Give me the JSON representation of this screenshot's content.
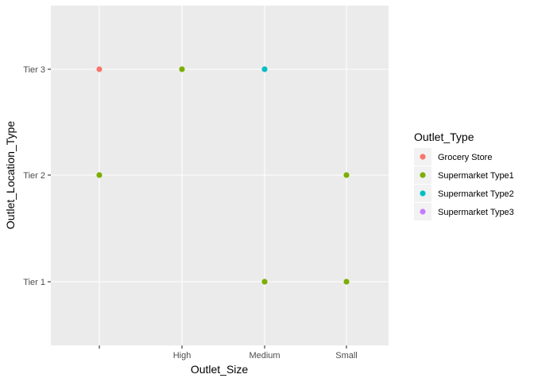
{
  "chart_data": {
    "type": "scatter",
    "title": "",
    "xlabel": "Outlet_Size",
    "ylabel": "Outlet_Location_Type",
    "x_categories": [
      "",
      "High",
      "Medium",
      "Small"
    ],
    "y_categories": [
      "Tier 1",
      "Tier 2",
      "Tier 3"
    ],
    "grid": true,
    "legend": {
      "title": "Outlet_Type",
      "placement": "right"
    },
    "series": [
      {
        "name": "Grocery Store",
        "color": "#F8766D",
        "points": [
          {
            "x": "",
            "y": "Tier 3"
          }
        ]
      },
      {
        "name": "Supermarket Type1",
        "color": "#7CAE00",
        "points": [
          {
            "x": "",
            "y": "Tier 2"
          },
          {
            "x": "High",
            "y": "Tier 3"
          },
          {
            "x": "Medium",
            "y": "Tier 1"
          },
          {
            "x": "Small",
            "y": "Tier 2"
          },
          {
            "x": "Small",
            "y": "Tier 1"
          }
        ]
      },
      {
        "name": "Supermarket Type2",
        "color": "#00BFC4",
        "points": [
          {
            "x": "Medium",
            "y": "Tier 3"
          }
        ]
      },
      {
        "name": "Supermarket Type3",
        "color": "#C77CFF",
        "points": []
      }
    ]
  }
}
